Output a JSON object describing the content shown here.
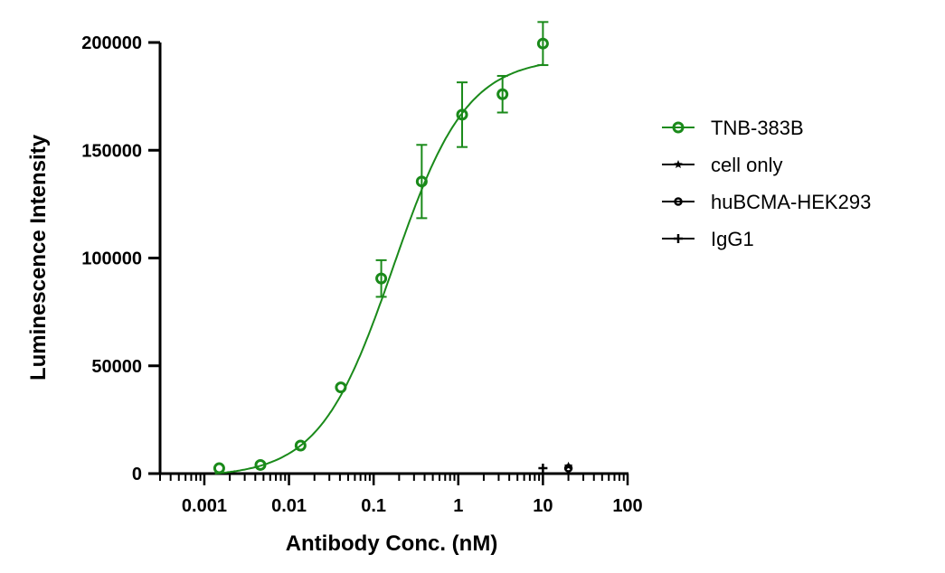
{
  "chart_data": {
    "type": "scatter",
    "title": "",
    "xlabel": "Antibody Conc. (nM)",
    "ylabel": "Luminescence Intensity",
    "xscale": "log",
    "xlim": [
      0.0003,
      100
    ],
    "ylim": [
      0,
      200000
    ],
    "x_ticks": [
      0.001,
      0.01,
      0.1,
      1,
      10,
      100
    ],
    "x_tick_labels": [
      "0.001",
      "0.01",
      "0.1",
      "1",
      "10",
      "100"
    ],
    "y_ticks": [
      0,
      50000,
      100000,
      150000,
      200000
    ],
    "y_tick_labels": [
      "0",
      "50000",
      "100000",
      "150000",
      "200000"
    ],
    "grid": false,
    "legend_position": "right",
    "series": [
      {
        "name": "TNB-383B",
        "color": "#1a8a1a",
        "marker": "open-circle",
        "fit": "4PL",
        "fit_params": {
          "bottom": -1500,
          "top": 193000,
          "ec50": 0.17,
          "hill": 1.0
        },
        "points": [
          {
            "x": 0.0015,
            "y": 2500
          },
          {
            "x": 0.0046,
            "y": 4000
          },
          {
            "x": 0.0137,
            "y": 13000
          },
          {
            "x": 0.041,
            "y": 40000
          },
          {
            "x": 0.123,
            "y": 90500,
            "err": 8500
          },
          {
            "x": 0.37,
            "y": 135500,
            "err": 17000
          },
          {
            "x": 1.11,
            "y": 166500,
            "err": 15000
          },
          {
            "x": 3.33,
            "y": 176000,
            "err": 8500
          },
          {
            "x": 10,
            "y": 199500,
            "err": 10000
          }
        ]
      },
      {
        "name": "cell only",
        "color": "#000000",
        "marker": "star",
        "points": [
          {
            "x": 20,
            "y": 3500
          }
        ]
      },
      {
        "name": "huBCMA-HEK293",
        "color": "#000000",
        "marker": "open-circle-small",
        "points": [
          {
            "x": 20,
            "y": 2500
          }
        ]
      },
      {
        "name": "IgG1",
        "color": "#000000",
        "marker": "plus",
        "points": [
          {
            "x": 10,
            "y": 2500
          }
        ]
      }
    ]
  }
}
